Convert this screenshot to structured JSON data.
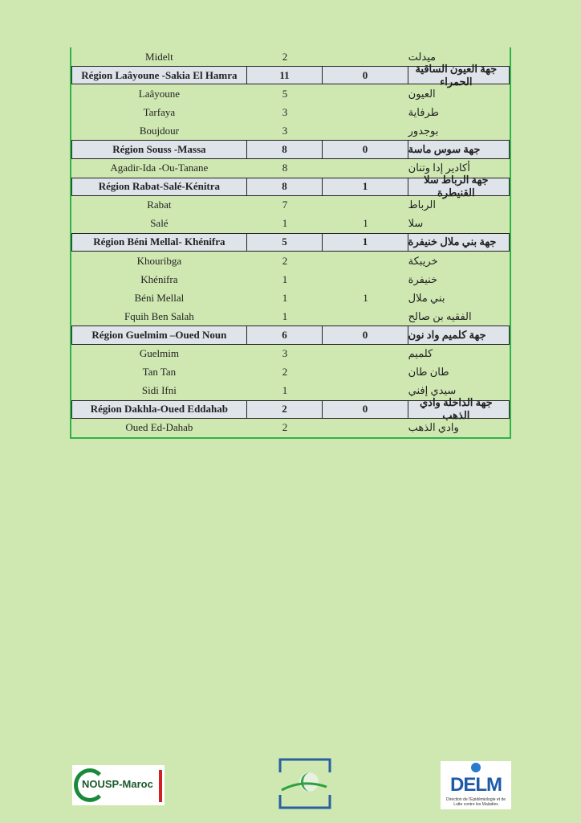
{
  "table": {
    "rows": [
      {
        "type": "district",
        "fr": "Midelt",
        "a": "2",
        "b": "",
        "ar": "ميدلت"
      },
      {
        "type": "region",
        "fr": "Région Laâyoune -Sakia El Hamra",
        "a": "11",
        "b": "0",
        "ar": "جهة العيون الساقية الحمراء"
      },
      {
        "type": "district",
        "fr": "Laâyoune",
        "a": "5",
        "b": "",
        "ar": "العيون"
      },
      {
        "type": "district",
        "fr": "Tarfaya",
        "a": "3",
        "b": "",
        "ar": "طرفاية"
      },
      {
        "type": "district",
        "fr": "Boujdour",
        "a": "3",
        "b": "",
        "ar": "بوجدور"
      },
      {
        "type": "region",
        "fr": "Région Souss -Massa",
        "a": "8",
        "b": "0",
        "ar": "جهة سوس ماسة"
      },
      {
        "type": "district",
        "fr": "Agadir-Ida -Ou-Tanane",
        "a": "8",
        "b": "",
        "ar": "أكادير إدا وتنان"
      },
      {
        "type": "region",
        "fr": "Région Rabat-Salé-Kénitra",
        "a": "8",
        "b": "1",
        "ar": "جهة الرباط سلا القنيطرة"
      },
      {
        "type": "district",
        "fr": "Rabat",
        "a": "7",
        "b": "",
        "ar": "الرباط"
      },
      {
        "type": "district",
        "fr": "Salé",
        "a": "1",
        "b": "1",
        "ar": "سلا"
      },
      {
        "type": "region",
        "fr": "Région Béni Mellal- Khénifra",
        "a": "5",
        "b": "1",
        "ar": "جهة بني ملال خنيفرة"
      },
      {
        "type": "district",
        "fr": "Khouribga",
        "a": "2",
        "b": "",
        "ar": "خريبكة"
      },
      {
        "type": "district",
        "fr": "Khénifra",
        "a": "1",
        "b": "",
        "ar": "خنيفرة"
      },
      {
        "type": "district",
        "fr": "Béni Mellal",
        "a": "1",
        "b": "1",
        "ar": "بني ملال"
      },
      {
        "type": "district",
        "fr": "Fquih Ben Salah",
        "a": "1",
        "b": "",
        "ar": "الفقيه بن صالح"
      },
      {
        "type": "region",
        "fr": "Région Guelmim –Oued Noun",
        "a": "6",
        "b": "0",
        "ar": "جهة كلميم واد نون"
      },
      {
        "type": "district",
        "fr": "Guelmim",
        "a": "3",
        "b": "",
        "ar": "كلميم"
      },
      {
        "type": "district",
        "fr": "Tan Tan",
        "a": "2",
        "b": "",
        "ar": "طان طان"
      },
      {
        "type": "district",
        "fr": "Sidi Ifni",
        "a": "1",
        "b": "",
        "ar": "سيدي إفني"
      },
      {
        "type": "region",
        "fr": "Région Dakhla-Oued Eddahab",
        "a": "2",
        "b": "0",
        "ar": "جهة الداخلة وادي الذهب"
      },
      {
        "type": "district",
        "fr": "Oued Ed-Dahab",
        "a": "2",
        "b": "",
        "ar": "وادي الذهب"
      }
    ]
  },
  "logos": {
    "left": "NOUSP-Maroc",
    "right": "DELM",
    "right_sub": "Direction de l'Epidémiologie et de Lutte contre les Maladies"
  },
  "colors": {
    "background": "#cfe8b1",
    "border": "#2fb24a",
    "region_row": "#dfe4ea"
  }
}
